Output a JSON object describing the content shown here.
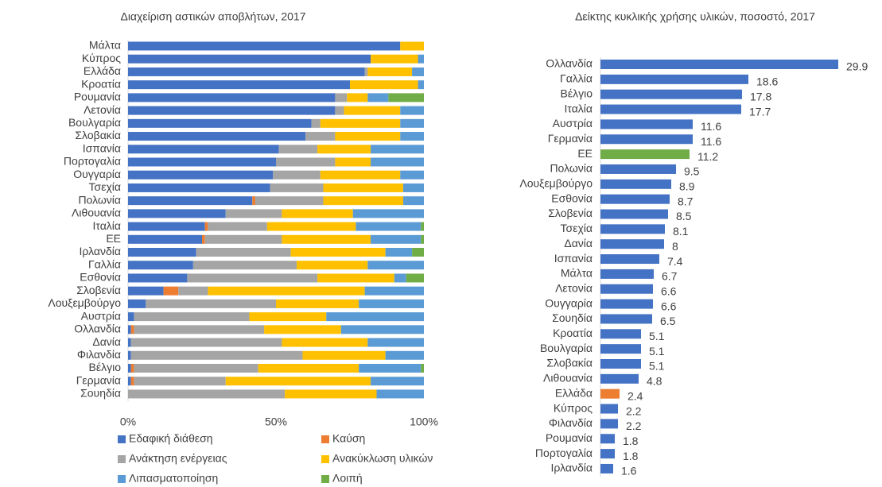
{
  "chart_data": [
    {
      "type": "stacked-bar-horizontal",
      "title": "Διαχείριση αστικών αποβλήτων, 2017",
      "categories": [
        "Μάλτα",
        "Κύπρος",
        "Ελλάδα",
        "Κροατία",
        "Ρουμανία",
        "Λετονία",
        "Βουλγαρία",
        "Σλοβακία",
        "Ισπανία",
        "Πορτογαλία",
        "Ουγγαρία",
        "Τσεχία",
        "Πολωνία",
        "Λιθουανία",
        "Ιταλία",
        "ΕΕ",
        "Ιρλανδία",
        "Γαλλία",
        "Εσθονία",
        "Σλοβενία",
        "Λουξεμβούργο",
        "Αυστρία",
        "Ολλανδία",
        "Δανία",
        "Φιλανδία",
        "Βέλγιο",
        "Γερμανία",
        "Σουηδία"
      ],
      "series": [
        {
          "name": "Εδαφική διάθεση",
          "color": "#4472c4",
          "values": [
            92,
            82,
            80,
            75,
            70,
            70,
            62,
            60,
            51,
            50,
            49,
            48,
            42,
            33,
            26,
            25,
            23,
            22,
            20,
            12,
            6,
            2,
            1,
            1,
            1,
            1,
            1,
            0
          ]
        },
        {
          "name": "Καύση",
          "color": "#ed7d31",
          "values": [
            0,
            0,
            0,
            0,
            0,
            0,
            0,
            0,
            0,
            0,
            0,
            0,
            1,
            0,
            1,
            1,
            0,
            0,
            0,
            5,
            0,
            0,
            1,
            0,
            0,
            1,
            1,
            0
          ]
        },
        {
          "name": "Ανάκτηση ενέργειας",
          "color": "#a5a5a5",
          "values": [
            0,
            0,
            1,
            0,
            4,
            3,
            3,
            10,
            13,
            20,
            16,
            18,
            23,
            19,
            20,
            26,
            32,
            35,
            44,
            10,
            44,
            39,
            44,
            51,
            58,
            42,
            31,
            53
          ]
        },
        {
          "name": "Ανακύκλωση υλικών",
          "color": "#ffc000",
          "values": [
            8,
            16,
            15,
            23,
            7,
            19,
            27,
            22,
            18,
            12,
            27,
            27,
            27,
            24,
            30,
            30,
            32,
            24,
            26,
            53,
            28,
            26,
            26,
            29,
            28,
            34,
            49,
            31
          ]
        },
        {
          "name": "Λιπασματοποίηση",
          "color": "#5b9bd5",
          "values": [
            0,
            2,
            4,
            2,
            7,
            8,
            8,
            8,
            18,
            18,
            8,
            7,
            7,
            24,
            22,
            17,
            9,
            19,
            4,
            20,
            22,
            33,
            28,
            19,
            13,
            21,
            18,
            16
          ]
        },
        {
          "name": "Λοιπή",
          "color": "#70ad47",
          "values": [
            0,
            0,
            0,
            0,
            12,
            0,
            0,
            0,
            0,
            0,
            0,
            0,
            0,
            0,
            1,
            1,
            4,
            0,
            6,
            0,
            0,
            0,
            0,
            0,
            0,
            1,
            0,
            0
          ]
        }
      ],
      "xlim": [
        0,
        100
      ],
      "xticks": [
        {
          "value": 0,
          "label": "0%"
        },
        {
          "value": 50,
          "label": "50%"
        },
        {
          "value": 100,
          "label": "100%"
        }
      ]
    },
    {
      "type": "bar-horizontal",
      "title": "Δείκτης κυκλικής χρήσης υλικών, ποσοστό, 2017",
      "categories": [
        "Ολλανδία",
        "Γαλλία",
        "Βέλγιο",
        "Ιταλία",
        "Αυστρία",
        "Γερμανία",
        "ΕΕ",
        "Πολωνία",
        "Λουξεμβούργο",
        "Εσθονία",
        "Σλοβενία",
        "Τσεχία",
        "Δανία",
        "Ισπανία",
        "Μάλτα",
        "Λετονία",
        "Ουγγαρία",
        "Σουηδία",
        "Κροατία",
        "Βουλγαρία",
        "Σλοβακία",
        "Λιθουανία",
        "Ελλάδα",
        "Κύπρος",
        "Φιλανδία",
        "Ρουμανία",
        "Πορτογαλία",
        "Ιρλανδία"
      ],
      "values": [
        29.9,
        18.6,
        17.8,
        17.7,
        11.6,
        11.6,
        11.2,
        9.5,
        8.9,
        8.7,
        8.5,
        8.1,
        8,
        7.4,
        6.7,
        6.6,
        6.6,
        6.5,
        5.1,
        5.1,
        5.1,
        4.8,
        2.4,
        2.2,
        2.2,
        1.8,
        1.8,
        1.6
      ],
      "colors": [
        "#4472c4",
        "#4472c4",
        "#4472c4",
        "#4472c4",
        "#4472c4",
        "#4472c4",
        "#70ad47",
        "#4472c4",
        "#4472c4",
        "#4472c4",
        "#4472c4",
        "#4472c4",
        "#4472c4",
        "#4472c4",
        "#4472c4",
        "#4472c4",
        "#4472c4",
        "#4472c4",
        "#4472c4",
        "#4472c4",
        "#4472c4",
        "#4472c4",
        "#ed7d31",
        "#4472c4",
        "#4472c4",
        "#4472c4",
        "#4472c4",
        "#4472c4"
      ],
      "xlim": [
        0,
        30
      ]
    }
  ]
}
